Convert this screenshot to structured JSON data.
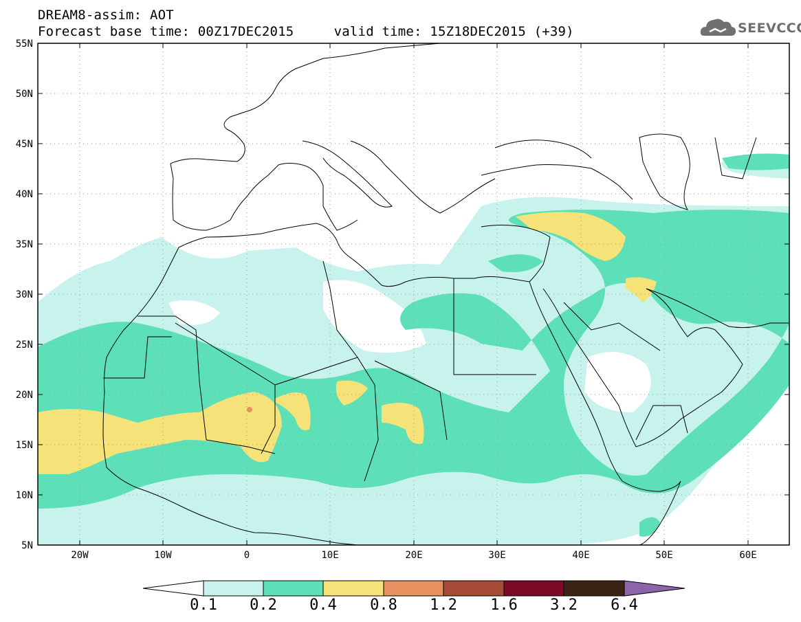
{
  "header": {
    "line1": "DREAM8-assim: AOT",
    "line2": "Forecast base time: 00Z17DEC2015     valid time: 15Z18DEC2015 (+39)"
  },
  "logo": {
    "text": "SEEVCCC",
    "icon": "cloud-logo-icon"
  },
  "map": {
    "lon_range": [
      -25,
      65
    ],
    "lat_range": [
      5,
      55
    ],
    "lat_ticks": [
      "55N",
      "50N",
      "45N",
      "40N",
      "35N",
      "30N",
      "25N",
      "20N",
      "15N",
      "10N",
      "5N"
    ],
    "lon_ticks": [
      "20W",
      "10W",
      "0",
      "10E",
      "20E",
      "30E",
      "40E",
      "50E",
      "60E"
    ],
    "grid": "dotted"
  },
  "colorbar": {
    "labels": [
      "0.1",
      "0.2",
      "0.4",
      "0.8",
      "1.2",
      "1.6",
      "3.2",
      "6.4"
    ],
    "colors": [
      "#ffffff",
      "#c8f2ec",
      "#5ddfb8",
      "#f5e278",
      "#e89060",
      "#a64b38",
      "#7a0a28",
      "#3c2414",
      "#8c64aa"
    ]
  }
}
